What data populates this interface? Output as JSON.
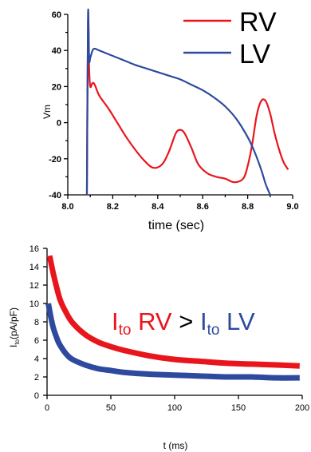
{
  "chart_data": [
    {
      "type": "line",
      "title": "",
      "xlabel": "time (sec)",
      "ylabel": "Vm",
      "xlim": [
        8.0,
        9.0
      ],
      "ylim": [
        -40,
        60
      ],
      "x_ticks": [
        8.0,
        8.2,
        8.4,
        8.6,
        8.8,
        9.0
      ],
      "x_tick_labels": [
        "8.0",
        "8.2",
        "8.4",
        "8.6",
        "8.8",
        "9.0"
      ],
      "y_ticks": [
        -40,
        -20,
        0,
        20,
        40,
        60
      ],
      "y_tick_labels": [
        "-40",
        "-20",
        "0",
        "20",
        "40",
        "60"
      ],
      "legend_position": "top-right",
      "grid": false,
      "series": [
        {
          "name": "RV",
          "color": "#e8161c",
          "x": [
            8.085,
            8.09,
            8.095,
            8.1,
            8.11,
            8.12,
            8.14,
            8.18,
            8.22,
            8.26,
            8.3,
            8.34,
            8.38,
            8.42,
            8.45,
            8.48,
            8.5,
            8.52,
            8.55,
            8.58,
            8.62,
            8.66,
            8.7,
            8.74,
            8.78,
            8.8,
            8.82,
            8.84,
            8.86,
            8.88,
            8.9,
            8.92,
            8.94,
            8.96,
            8.98
          ],
          "y": [
            -40,
            55,
            30,
            20,
            22,
            21,
            15,
            8,
            0,
            -8,
            -15,
            -21,
            -25,
            -23,
            -16,
            -6,
            -4,
            -6,
            -14,
            -23,
            -28,
            -30,
            -31,
            -33,
            -31,
            -24,
            -12,
            4,
            12,
            12,
            5,
            -6,
            -15,
            -22,
            -26
          ]
        },
        {
          "name": "LV",
          "color": "#2e4a9e",
          "x": [
            8.085,
            8.09,
            8.095,
            8.1,
            8.11,
            8.12,
            8.14,
            8.18,
            8.22,
            8.26,
            8.3,
            8.35,
            8.4,
            8.45,
            8.5,
            8.55,
            8.6,
            8.65,
            8.7,
            8.75,
            8.8,
            8.83,
            8.86,
            8.88,
            8.9
          ],
          "y": [
            -40,
            60,
            35,
            36,
            40,
            41,
            40,
            38,
            36,
            34,
            32,
            30,
            28,
            26,
            24,
            21,
            18,
            14,
            9,
            2,
            -8,
            -16,
            -26,
            -34,
            -40
          ]
        }
      ]
    },
    {
      "type": "line",
      "title": "",
      "xlabel": "t  (ms)",
      "ylabel": "Ito(pA/pF)",
      "ylabel_main": "I",
      "ylabel_sub": "to",
      "ylabel_rest": "(pA/pF)",
      "xlim": [
        0,
        200
      ],
      "ylim": [
        0,
        16
      ],
      "x_ticks": [
        0,
        50,
        100,
        150,
        200
      ],
      "x_tick_labels": [
        "0",
        "50",
        "100",
        "150",
        "200"
      ],
      "y_ticks": [
        0,
        2,
        4,
        6,
        8,
        10,
        12,
        14,
        16
      ],
      "y_tick_labels": [
        "0",
        "2",
        "4",
        "6",
        "8",
        "10",
        "12",
        "14",
        "16"
      ],
      "grid": false,
      "annotation": {
        "text": "Ito RV > Ito LV",
        "left_main": "I",
        "left_sub": "to",
        "left_rest": " RV",
        "operator": " > ",
        "right_main": "I",
        "right_sub": "to",
        "right_rest": " LV",
        "left_color": "#e8161c",
        "right_color": "#2e4a9e"
      },
      "series": [
        {
          "name": "RV",
          "color": "#e8161c",
          "x": [
            2,
            5,
            10,
            15,
            20,
            30,
            40,
            50,
            60,
            80,
            100,
            120,
            140,
            160,
            180,
            198
          ],
          "y": [
            15.2,
            13.2,
            10.5,
            9.0,
            7.9,
            6.6,
            5.8,
            5.3,
            4.9,
            4.3,
            3.9,
            3.7,
            3.5,
            3.4,
            3.3,
            3.2
          ]
        },
        {
          "name": "LV",
          "color": "#2e4a9e",
          "x": [
            1,
            3,
            5,
            8,
            10,
            15,
            20,
            30,
            40,
            50,
            60,
            80,
            100,
            120,
            140,
            160,
            180,
            198
          ],
          "y": [
            10.0,
            8.5,
            7.3,
            6.1,
            5.5,
            4.5,
            3.9,
            3.3,
            2.9,
            2.7,
            2.5,
            2.3,
            2.2,
            2.1,
            2.0,
            2.0,
            1.9,
            1.9
          ]
        }
      ]
    }
  ]
}
